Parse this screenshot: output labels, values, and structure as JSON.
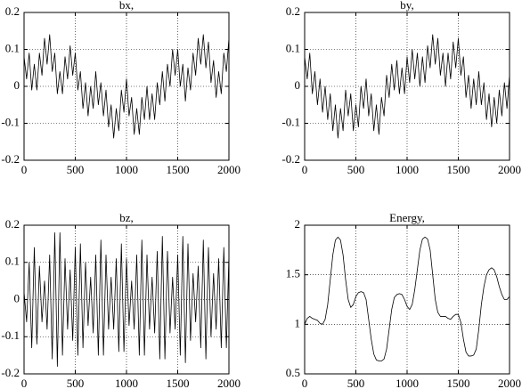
{
  "chart_data": [
    {
      "type": "line",
      "title": "bx,",
      "color": "#000000",
      "grid": true,
      "x": [
        0,
        25,
        50,
        75,
        100,
        125,
        150,
        175,
        200,
        225,
        250,
        275,
        300,
        325,
        350,
        375,
        400,
        425,
        450,
        475,
        500,
        525,
        550,
        575,
        600,
        625,
        650,
        675,
        700,
        725,
        750,
        775,
        800,
        825,
        850,
        875,
        900,
        925,
        950,
        975,
        1000,
        1025,
        1050,
        1075,
        1100,
        1125,
        1150,
        1175,
        1200,
        1225,
        1250,
        1275,
        1300,
        1325,
        1350,
        1375,
        1400,
        1425,
        1450,
        1475,
        1500,
        1525,
        1550,
        1575,
        1600,
        1625,
        1650,
        1675,
        1700,
        1725,
        1750,
        1775,
        1800,
        1825,
        1850,
        1875,
        1900,
        1925,
        1950,
        1975,
        2000
      ],
      "values": [
        0.08,
        0.02,
        0.09,
        -0.01,
        0.06,
        -0.01,
        0.09,
        0.03,
        0.13,
        0.06,
        0.14,
        0.04,
        0.09,
        -0.02,
        0.04,
        -0.02,
        0.08,
        0.02,
        0.11,
        0.03,
        0.09,
        -0.01,
        0.04,
        -0.06,
        0.01,
        -0.08,
        0.0,
        -0.06,
        0.04,
        -0.05,
        0.01,
        -0.08,
        -0.01,
        -0.11,
        -0.05,
        -0.14,
        -0.06,
        -0.12,
        -0.01,
        -0.07,
        0.02,
        -0.08,
        -0.03,
        -0.13,
        -0.06,
        -0.13,
        -0.03,
        -0.09,
        0.0,
        -0.09,
        -0.02,
        -0.09,
        0.01,
        -0.05,
        0.04,
        -0.04,
        0.06,
        0.0,
        0.1,
        0.03,
        0.1,
        0.0,
        0.06,
        -0.04,
        0.05,
        -0.01,
        0.09,
        0.03,
        0.13,
        0.06,
        0.14,
        0.05,
        0.12,
        0.01,
        0.07,
        -0.03,
        0.04,
        -0.02,
        0.09,
        0.04,
        0.13
      ],
      "xlim": [
        0,
        2000
      ],
      "xticks": [
        0,
        500,
        1000,
        1500,
        2000
      ],
      "ylim": [
        -0.2,
        0.2
      ],
      "yticks": [
        -0.2,
        -0.1,
        0,
        0.1,
        0.2
      ]
    },
    {
      "type": "line",
      "title": "by,",
      "color": "#000000",
      "grid": true,
      "x": [
        0,
        25,
        50,
        75,
        100,
        125,
        150,
        175,
        200,
        225,
        250,
        275,
        300,
        325,
        350,
        375,
        400,
        425,
        450,
        475,
        500,
        525,
        550,
        575,
        600,
        625,
        650,
        675,
        700,
        725,
        750,
        775,
        800,
        825,
        850,
        875,
        900,
        925,
        950,
        975,
        1000,
        1025,
        1050,
        1075,
        1100,
        1125,
        1150,
        1175,
        1200,
        1225,
        1250,
        1275,
        1300,
        1325,
        1350,
        1375,
        1400,
        1425,
        1450,
        1475,
        1500,
        1525,
        1550,
        1575,
        1600,
        1625,
        1650,
        1675,
        1700,
        1725,
        1750,
        1775,
        1800,
        1825,
        1850,
        1875,
        1900,
        1925,
        1950,
        1975,
        2000
      ],
      "values": [
        0.08,
        0.02,
        0.09,
        -0.02,
        0.04,
        -0.05,
        0.02,
        -0.07,
        0.0,
        -0.09,
        -0.02,
        -0.12,
        -0.05,
        -0.14,
        -0.06,
        -0.12,
        -0.01,
        -0.08,
        -0.02,
        -0.12,
        -0.05,
        -0.11,
        0.0,
        -0.06,
        0.02,
        -0.08,
        -0.02,
        -0.12,
        -0.05,
        -0.13,
        -0.03,
        -0.08,
        0.03,
        -0.03,
        0.06,
        -0.01,
        0.07,
        -0.02,
        0.05,
        -0.02,
        0.08,
        0.01,
        0.1,
        0.02,
        0.09,
        0.0,
        0.08,
        0.01,
        0.11,
        0.05,
        0.14,
        0.06,
        0.13,
        0.03,
        0.09,
        0.0,
        0.09,
        0.02,
        0.12,
        0.05,
        0.13,
        0.03,
        0.08,
        -0.03,
        0.03,
        -0.06,
        0.02,
        -0.05,
        0.04,
        -0.05,
        0.01,
        -0.09,
        -0.02,
        -0.11,
        -0.03,
        -0.1,
        -0.01,
        -0.08,
        0.01,
        -0.06,
        0.03
      ],
      "xlim": [
        0,
        2000
      ],
      "xticks": [
        0,
        500,
        1000,
        1500,
        2000
      ],
      "ylim": [
        -0.2,
        0.2
      ],
      "yticks": [
        -0.2,
        -0.1,
        0,
        0.1,
        0.2
      ]
    },
    {
      "type": "line",
      "title": "bz,",
      "color": "#000000",
      "grid": true,
      "x": [
        0,
        25,
        50,
        75,
        100,
        125,
        150,
        175,
        200,
        225,
        250,
        275,
        300,
        325,
        350,
        375,
        400,
        425,
        450,
        475,
        500,
        525,
        550,
        575,
        600,
        625,
        650,
        675,
        700,
        725,
        750,
        775,
        800,
        825,
        850,
        875,
        900,
        925,
        950,
        975,
        1000,
        1025,
        1050,
        1075,
        1100,
        1125,
        1150,
        1175,
        1200,
        1225,
        1250,
        1275,
        1300,
        1325,
        1350,
        1375,
        1400,
        1425,
        1450,
        1475,
        1500,
        1525,
        1550,
        1575,
        1600,
        1625,
        1650,
        1675,
        1700,
        1725,
        1750,
        1775,
        1800,
        1825,
        1850,
        1875,
        1900,
        1925,
        1950,
        1975,
        2000
      ],
      "values": [
        0.02,
        -0.06,
        0.1,
        -0.13,
        0.14,
        -0.12,
        0.09,
        -0.06,
        0.05,
        -0.08,
        0.12,
        -0.16,
        0.18,
        -0.18,
        0.18,
        -0.15,
        0.11,
        -0.08,
        0.08,
        -0.11,
        0.14,
        -0.15,
        0.15,
        -0.13,
        0.1,
        -0.07,
        0.06,
        -0.09,
        0.12,
        -0.15,
        0.16,
        -0.15,
        0.12,
        -0.08,
        0.06,
        -0.08,
        0.11,
        -0.14,
        0.15,
        -0.14,
        0.11,
        -0.07,
        0.05,
        -0.08,
        0.12,
        -0.15,
        0.16,
        -0.15,
        0.12,
        -0.08,
        0.06,
        -0.09,
        0.13,
        -0.16,
        0.17,
        -0.16,
        0.13,
        -0.09,
        0.06,
        -0.08,
        0.12,
        -0.15,
        0.17,
        -0.17,
        0.15,
        -0.11,
        0.07,
        -0.06,
        0.09,
        -0.13,
        0.16,
        -0.16,
        0.14,
        -0.1,
        0.07,
        -0.08,
        0.11,
        -0.13,
        0.14,
        -0.13,
        0.12
      ],
      "xlim": [
        0,
        2000
      ],
      "xticks": [
        0,
        500,
        1000,
        1500,
        2000
      ],
      "ylim": [
        -0.2,
        0.2
      ],
      "yticks": [
        -0.2,
        -0.1,
        0,
        0.1,
        0.2
      ]
    },
    {
      "type": "line",
      "title": "Energy,",
      "color": "#000000",
      "grid": true,
      "x": [
        0,
        25,
        50,
        75,
        100,
        125,
        150,
        175,
        200,
        225,
        250,
        275,
        300,
        325,
        350,
        375,
        400,
        425,
        450,
        475,
        500,
        525,
        550,
        575,
        600,
        625,
        650,
        675,
        700,
        725,
        750,
        775,
        800,
        825,
        850,
        875,
        900,
        925,
        950,
        975,
        1000,
        1025,
        1050,
        1075,
        1100,
        1125,
        1150,
        1175,
        1200,
        1225,
        1250,
        1275,
        1300,
        1325,
        1350,
        1375,
        1400,
        1425,
        1450,
        1475,
        1500,
        1525,
        1550,
        1575,
        1600,
        1625,
        1650,
        1675,
        1700,
        1725,
        1750,
        1775,
        1800,
        1825,
        1850,
        1875,
        1900,
        1925,
        1950,
        1975,
        2000
      ],
      "values": [
        1.0,
        1.06,
        1.08,
        1.06,
        1.05,
        1.04,
        1.01,
        1.0,
        1.05,
        1.2,
        1.45,
        1.7,
        1.85,
        1.88,
        1.85,
        1.7,
        1.45,
        1.25,
        1.17,
        1.2,
        1.28,
        1.32,
        1.33,
        1.32,
        1.25,
        1.05,
        0.85,
        0.7,
        0.64,
        0.63,
        0.63,
        0.65,
        0.75,
        0.95,
        1.15,
        1.27,
        1.3,
        1.31,
        1.3,
        1.25,
        1.18,
        1.15,
        1.2,
        1.35,
        1.55,
        1.75,
        1.86,
        1.88,
        1.86,
        1.75,
        1.5,
        1.25,
        1.12,
        1.08,
        1.08,
        1.08,
        1.06,
        1.05,
        1.08,
        1.1,
        1.1,
        1.02,
        0.85,
        0.72,
        0.68,
        0.68,
        0.69,
        0.75,
        0.95,
        1.2,
        1.38,
        1.5,
        1.55,
        1.57,
        1.55,
        1.48,
        1.38,
        1.3,
        1.25,
        1.25,
        1.28
      ],
      "xlim": [
        0,
        2000
      ],
      "xticks": [
        0,
        500,
        1000,
        1500,
        2000
      ],
      "ylim": [
        0.5,
        2
      ],
      "yticks": [
        0.5,
        1,
        1.5,
        2
      ]
    }
  ]
}
